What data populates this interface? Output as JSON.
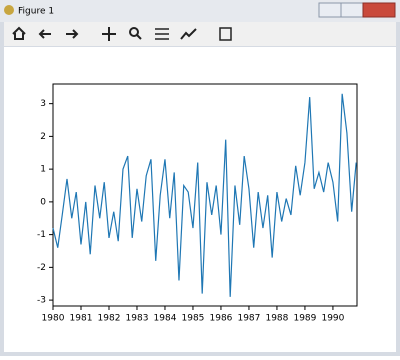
{
  "window": {
    "title": "Figure 1"
  },
  "chart_data": {
    "type": "line",
    "x": [
      1980.0,
      1980.17,
      1980.33,
      1980.5,
      1980.67,
      1980.83,
      1981.0,
      1981.17,
      1981.33,
      1981.5,
      1981.67,
      1981.83,
      1982.0,
      1982.17,
      1982.33,
      1982.5,
      1982.67,
      1982.83,
      1983.0,
      1983.17,
      1983.33,
      1983.5,
      1983.67,
      1983.83,
      1984.0,
      1984.17,
      1984.33,
      1984.5,
      1984.67,
      1984.83,
      1985.0,
      1985.17,
      1985.33,
      1985.5,
      1985.67,
      1985.83,
      1986.0,
      1986.17,
      1986.33,
      1986.5,
      1986.67,
      1986.83,
      1987.0,
      1987.17,
      1987.33,
      1987.5,
      1987.67,
      1987.83,
      1988.0,
      1988.17,
      1988.33,
      1988.5,
      1988.67,
      1988.83,
      1989.0,
      1989.17,
      1989.33,
      1989.5,
      1989.67,
      1989.83,
      1990.0,
      1990.17,
      1990.33,
      1990.5,
      1990.67,
      1990.83
    ],
    "values": [
      -0.8,
      -1.4,
      -0.4,
      0.7,
      -0.5,
      0.3,
      -1.3,
      0.0,
      -1.6,
      0.5,
      -0.5,
      0.6,
      -1.1,
      -0.3,
      -1.2,
      1.0,
      1.4,
      -1.1,
      0.4,
      -0.6,
      0.8,
      1.3,
      -1.8,
      0.2,
      1.3,
      -0.5,
      0.9,
      -2.4,
      0.5,
      0.3,
      -0.8,
      1.2,
      -2.8,
      0.6,
      -0.4,
      0.5,
      -1.0,
      1.9,
      -2.9,
      0.5,
      -0.7,
      1.4,
      0.4,
      -1.4,
      0.3,
      -0.8,
      0.2,
      -1.7,
      0.3,
      -0.6,
      0.1,
      -0.4,
      1.1,
      0.2,
      1.2,
      3.2,
      0.4,
      0.9,
      0.3,
      1.2,
      0.6,
      -0.6,
      3.3,
      2.1,
      -0.3,
      1.2
    ],
    "color": "#1f77b4",
    "xlim": [
      1980,
      1990.86
    ],
    "xticks": [
      1980,
      1981,
      1982,
      1983,
      1984,
      1985,
      1986,
      1987,
      1988,
      1989,
      1990
    ],
    "ylim": [
      -3.18,
      3.6
    ],
    "yticks": [
      -3,
      -2,
      -1,
      0,
      1,
      2,
      3
    ]
  }
}
